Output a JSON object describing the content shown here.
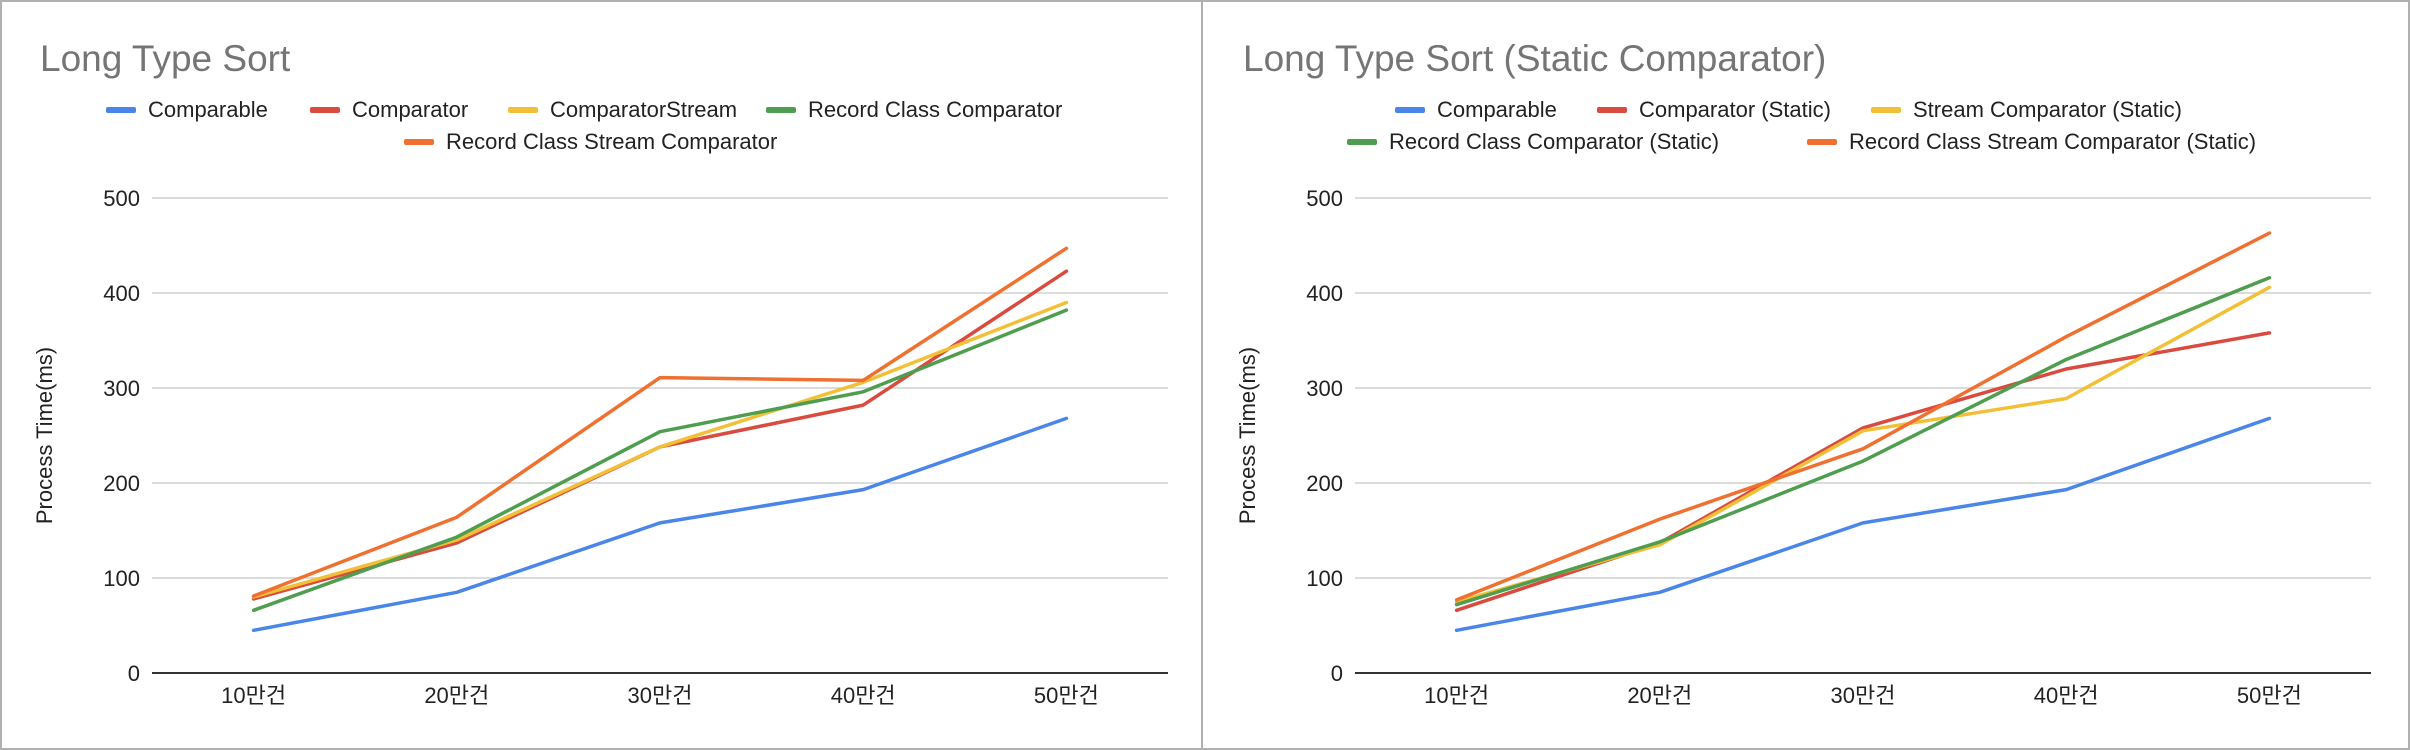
{
  "chart_data": [
    {
      "type": "line",
      "title": "Long Type Sort",
      "xlabel": "",
      "ylabel": "Process Time(ms)",
      "ylim": [
        0,
        500
      ],
      "yticks": [
        0,
        100,
        200,
        300,
        400,
        500
      ],
      "grid": true,
      "legend_position": "top",
      "categories": [
        "10만건",
        "20만건",
        "30만건",
        "40만건",
        "50만건"
      ],
      "series": [
        {
          "name": "Comparable",
          "color": "#4a86e8",
          "values": [
            45,
            85,
            158,
            193,
            268
          ]
        },
        {
          "name": "Comparator",
          "color": "#d94a3f",
          "values": [
            78,
            137,
            238,
            282,
            423
          ]
        },
        {
          "name": "ComparatorStream",
          "color": "#f2c037",
          "values": [
            80,
            140,
            238,
            306,
            390
          ]
        },
        {
          "name": "Record Class Comparator",
          "color": "#4f9e4f",
          "values": [
            66,
            143,
            254,
            296,
            382
          ]
        },
        {
          "name": "Record Class Stream Comparator",
          "color": "#f07030",
          "values": [
            81,
            164,
            311,
            308,
            447
          ]
        }
      ]
    },
    {
      "type": "line",
      "title": "Long Type Sort (Static Comparator)",
      "xlabel": "",
      "ylabel": "Process Time(ms)",
      "ylim": [
        0,
        500
      ],
      "yticks": [
        0,
        100,
        200,
        300,
        400,
        500
      ],
      "grid": true,
      "legend_position": "top",
      "categories": [
        "10만건",
        "20만건",
        "30만건",
        "40만건",
        "50만건"
      ],
      "series": [
        {
          "name": "Comparable",
          "color": "#4a86e8",
          "values": [
            45,
            85,
            158,
            193,
            268
          ]
        },
        {
          "name": "Comparator (Static)",
          "color": "#d94a3f",
          "values": [
            66,
            137,
            258,
            320,
            358
          ]
        },
        {
          "name": "Stream Comparator (Static)",
          "color": "#f2c037",
          "values": [
            75,
            135,
            255,
            289,
            406
          ]
        },
        {
          "name": "Record Class Comparator (Static)",
          "color": "#4f9e4f",
          "values": [
            72,
            138,
            223,
            330,
            416
          ]
        },
        {
          "name": "Record Class Stream Comparator (Static)",
          "color": "#f07030",
          "values": [
            77,
            162,
            236,
            354,
            463
          ]
        }
      ]
    }
  ]
}
